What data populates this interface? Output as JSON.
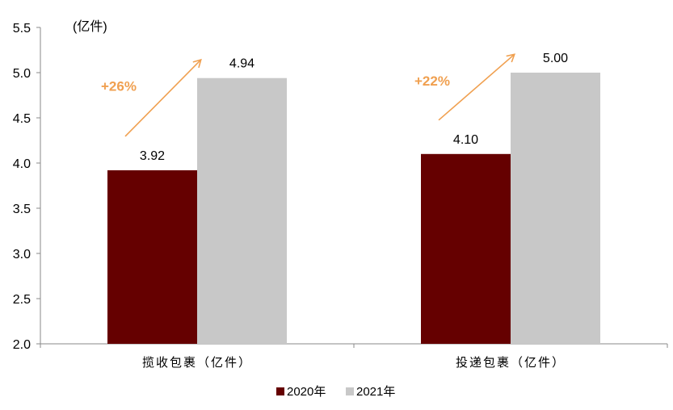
{
  "chart_data": {
    "type": "bar",
    "unit_label": "(亿件)",
    "categories": [
      "揽收包裹（亿件）",
      "投递包裹（亿件）"
    ],
    "series": [
      {
        "name": "2020年",
        "values": [
          3.92,
          4.1
        ],
        "color": "#650000"
      },
      {
        "name": "2021年",
        "values": [
          4.94,
          5.0
        ],
        "color": "#c8c8c8"
      }
    ],
    "data_labels": [
      [
        "3.92",
        "4.10"
      ],
      [
        "4.94",
        "5.00"
      ]
    ],
    "ylim": [
      2.0,
      5.5
    ],
    "yticks": [
      "2.0",
      "2.5",
      "3.0",
      "3.5",
      "4.0",
      "4.5",
      "5.0",
      "5.5"
    ],
    "growth_labels": [
      "+26%",
      "+22%"
    ],
    "growth_color": "#f0a050",
    "grid": false,
    "legend_position": "bottom-center"
  }
}
